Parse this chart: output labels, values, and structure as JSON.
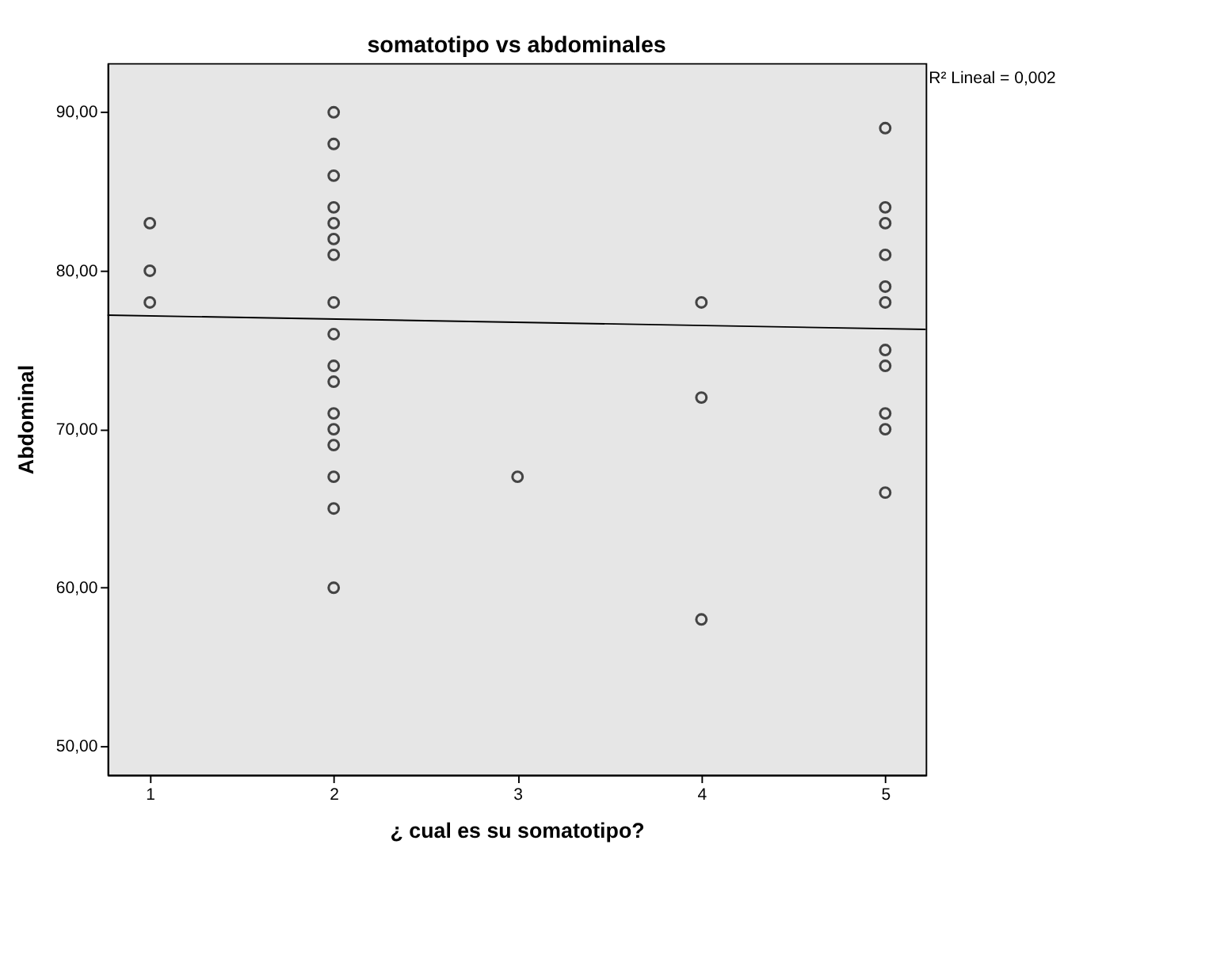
{
  "chart_data": {
    "type": "scatter",
    "title": "somatotipo vs abdominales",
    "xlabel": "¿ cual es su somatotipo?",
    "ylabel": "Abdominal",
    "xlim": [
      0.77,
      5.22
    ],
    "ylim": [
      48.2,
      93.1
    ],
    "xticks": [
      1,
      2,
      3,
      4,
      5
    ],
    "yticks": [
      {
        "value": 50,
        "label": "50,00"
      },
      {
        "value": 60,
        "label": "60,00"
      },
      {
        "value": 70,
        "label": "70,00"
      },
      {
        "value": 80,
        "label": "80,00"
      },
      {
        "value": 90,
        "label": "90,00"
      }
    ],
    "grid": false,
    "marker": "circle",
    "annotations": [
      "R² Lineal = 0,002"
    ],
    "series": [
      {
        "color": "#000000",
        "x": [
          1,
          1,
          1,
          2,
          2,
          2,
          2,
          2,
          2,
          2,
          2,
          2,
          2,
          2,
          2,
          2,
          2,
          2,
          2,
          2,
          3,
          4,
          4,
          4,
          5,
          5,
          5,
          5,
          5,
          5,
          5,
          5,
          5,
          5,
          5
        ],
        "values": [
          83,
          80,
          78,
          90,
          88,
          86,
          84,
          83,
          82,
          81,
          78,
          76,
          74,
          73,
          71,
          70,
          69,
          67,
          65,
          60,
          67,
          78,
          72,
          58,
          89,
          84,
          83,
          81,
          79,
          78,
          75,
          74,
          71,
          70,
          66
        ]
      },
      {
        "type": "line",
        "color": "#000000",
        "marker": "none",
        "x": [
          0.77,
          5.22
        ],
        "values": [
          77.2,
          76.3
        ]
      }
    ]
  }
}
